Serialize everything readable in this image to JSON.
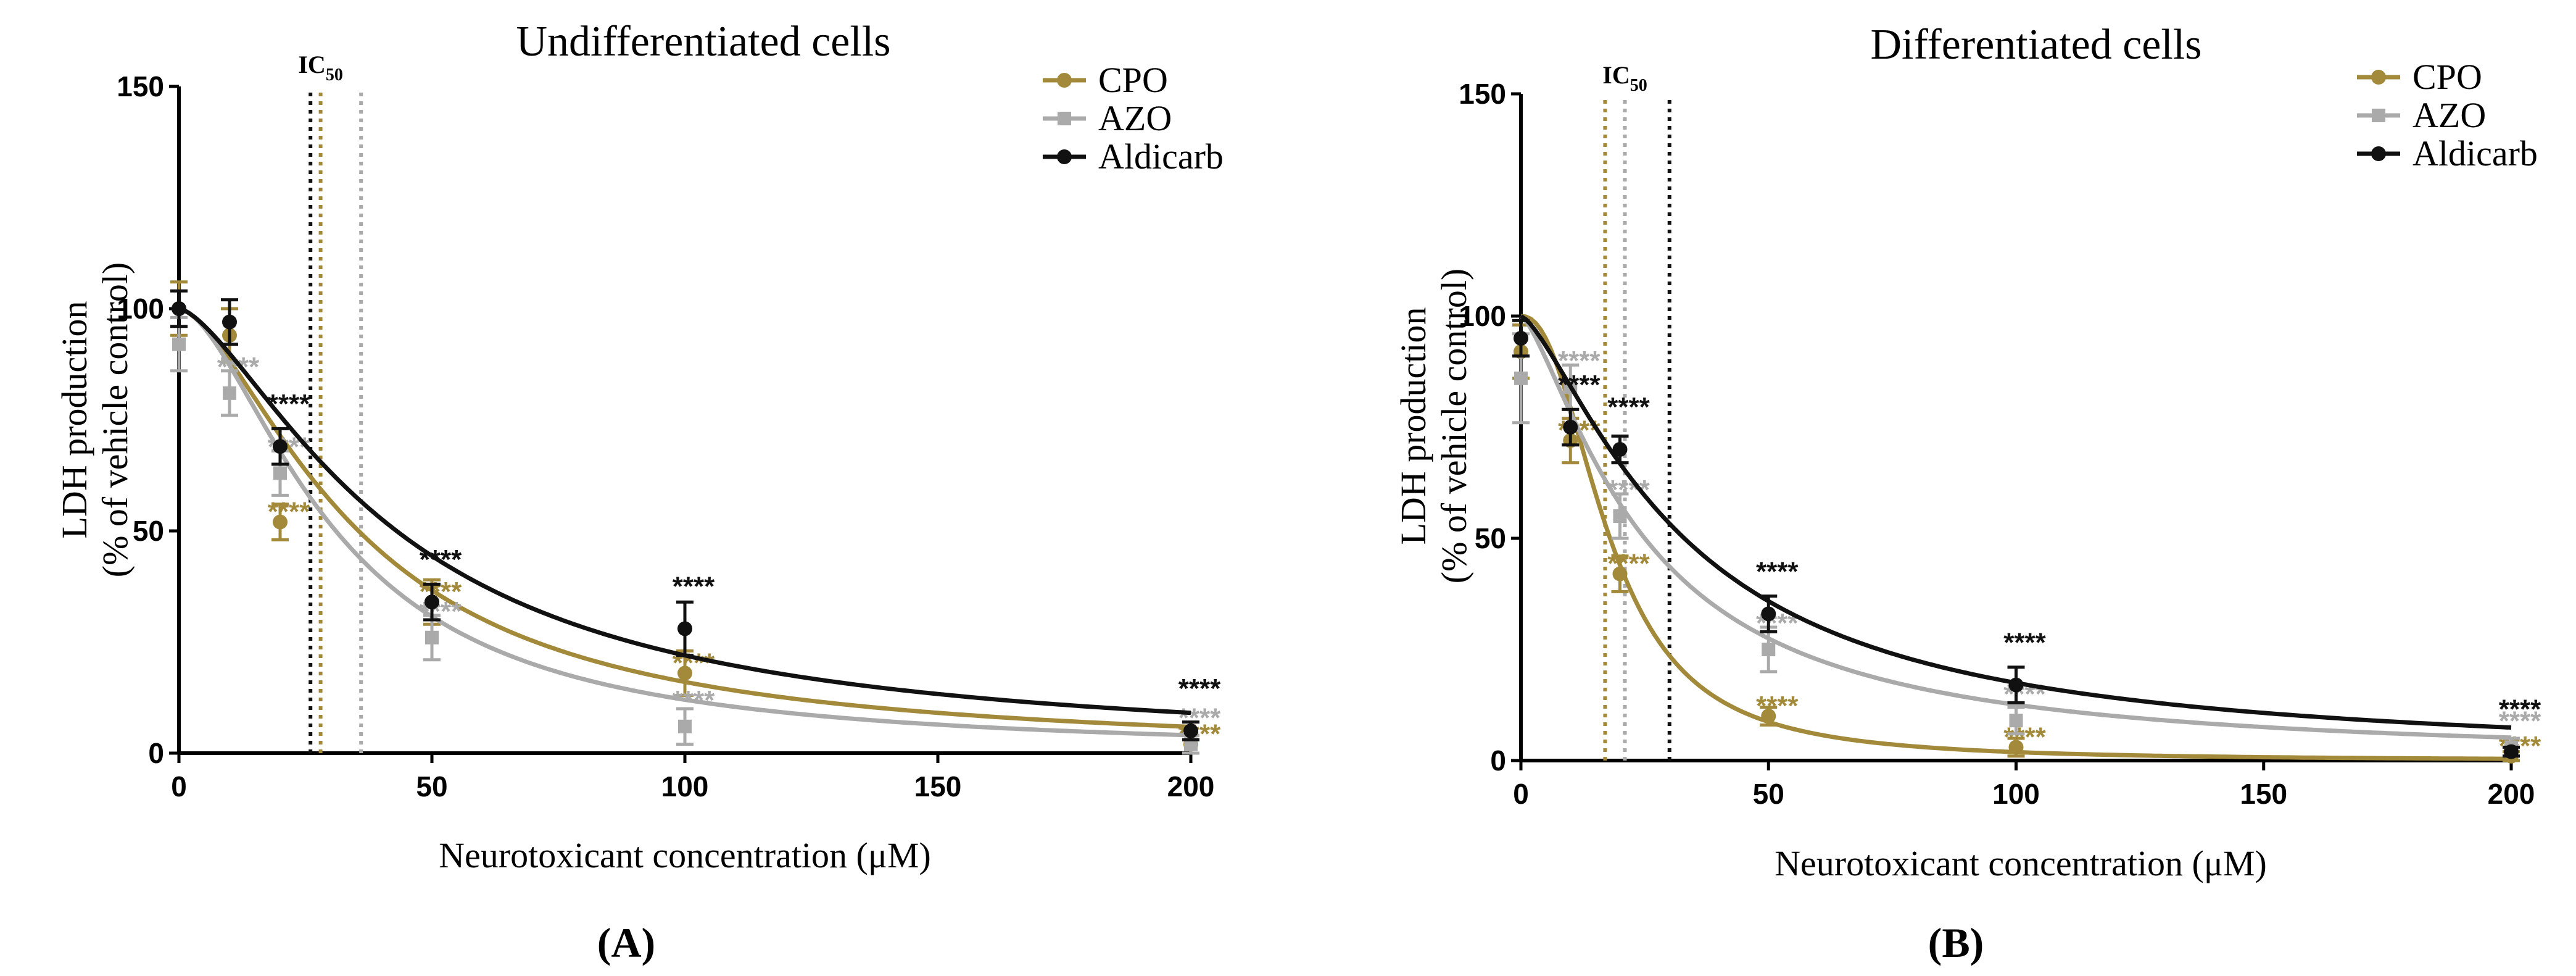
{
  "colors": {
    "CPO": "#a28a3a",
    "AZO": "#aaaaaa",
    "Aldicarb": "#111111"
  },
  "chart_data": [
    {
      "type": "line",
      "panel": "A",
      "panel_label": "(A)",
      "title": "Undifferentiated cells",
      "xlabel": "Neurotoxicant concentration (μM)",
      "ylabel_line1": "LDH production",
      "ylabel_line2": "(% of vehicle control)",
      "xlim": [
        0,
        200
      ],
      "ylim": [
        0,
        150
      ],
      "xticks": [
        0,
        50,
        100,
        150,
        200
      ],
      "yticks": [
        0,
        50,
        100,
        150
      ],
      "ic50_label": "IC",
      "ic50_sub": "50",
      "ic50_lines": [
        {
          "series": "Aldicarb",
          "x": 26
        },
        {
          "series": "CPO",
          "x": 28
        },
        {
          "series": "AZO",
          "x": 36
        }
      ],
      "legend_position": "top-right",
      "series": [
        {
          "name": "CPO",
          "x": [
            0,
            10,
            20,
            50,
            100,
            200
          ],
          "y": [
            100,
            94,
            52,
            34,
            18,
            2
          ],
          "err": [
            6,
            6,
            4,
            5,
            5,
            2
          ],
          "fit_ec": 35.5,
          "fit_hill": 1.6,
          "stars": [
            "",
            "",
            "****",
            "****",
            "****",
            "****"
          ]
        },
        {
          "name": "AZO",
          "x": [
            0,
            10,
            20,
            50,
            100,
            200
          ],
          "y": [
            92,
            81,
            63,
            26,
            6,
            2
          ],
          "err": [
            6,
            5,
            5,
            5,
            4,
            2
          ],
          "fit_ec": 31,
          "fit_hill": 1.7,
          "stars": [
            "",
            "****",
            "****",
            "****",
            "****",
            "****"
          ]
        },
        {
          "name": "Aldicarb",
          "x": [
            0,
            10,
            20,
            50,
            100,
            200
          ],
          "y": [
            100,
            97,
            69,
            34,
            28,
            5
          ],
          "err": [
            4,
            5,
            4,
            4,
            6,
            2
          ],
          "fit_ec": 43,
          "fit_hill": 1.5,
          "stars": [
            "",
            "",
            "****",
            "****",
            "****",
            "****"
          ]
        }
      ]
    },
    {
      "type": "line",
      "panel": "B",
      "panel_label": "(B)",
      "title": "Differentiated cells",
      "xlabel": "Neurotoxicant concentration (μM)",
      "ylabel_line1": "LDH production",
      "ylabel_line2": "(% of vehicle control)",
      "xlim": [
        0,
        200
      ],
      "ylim": [
        0,
        150
      ],
      "xticks": [
        0,
        50,
        100,
        150,
        200
      ],
      "yticks": [
        0,
        50,
        100,
        150
      ],
      "ic50_label": "IC",
      "ic50_sub": "50",
      "ic50_lines": [
        {
          "series": "CPO",
          "x": 17
        },
        {
          "series": "AZO",
          "x": 21
        },
        {
          "series": "Aldicarb",
          "x": 30
        }
      ],
      "legend_position": "top-right",
      "series": [
        {
          "name": "CPO",
          "x": [
            0,
            10,
            20,
            50,
            100,
            200
          ],
          "y": [
            92,
            72,
            42,
            10,
            3,
            1
          ],
          "err": [
            6,
            5,
            4,
            2,
            2,
            1
          ],
          "fit_ec": 18,
          "fit_hill": 2.3,
          "stars": [
            "",
            "****",
            "****",
            "****",
            "****",
            "****"
          ]
        },
        {
          "name": "AZO",
          "x": [
            0,
            10,
            20,
            50,
            100,
            200
          ],
          "y": [
            86,
            84,
            55,
            25,
            9,
            3
          ],
          "err": [
            10,
            5,
            5,
            5,
            3,
            2
          ],
          "fit_ec": 25,
          "fit_hill": 1.4,
          "stars": [
            "",
            "****",
            "****",
            "****",
            "****",
            "****"
          ]
        },
        {
          "name": "Aldicarb",
          "x": [
            0,
            10,
            20,
            50,
            100,
            200
          ],
          "y": [
            95,
            75,
            70,
            33,
            17,
            2
          ],
          "err": [
            4,
            4,
            3,
            4,
            4,
            1
          ],
          "fit_ec": 33,
          "fit_hill": 1.4,
          "stars": [
            "",
            "****",
            "****",
            "****",
            "****",
            "****"
          ]
        }
      ]
    }
  ]
}
